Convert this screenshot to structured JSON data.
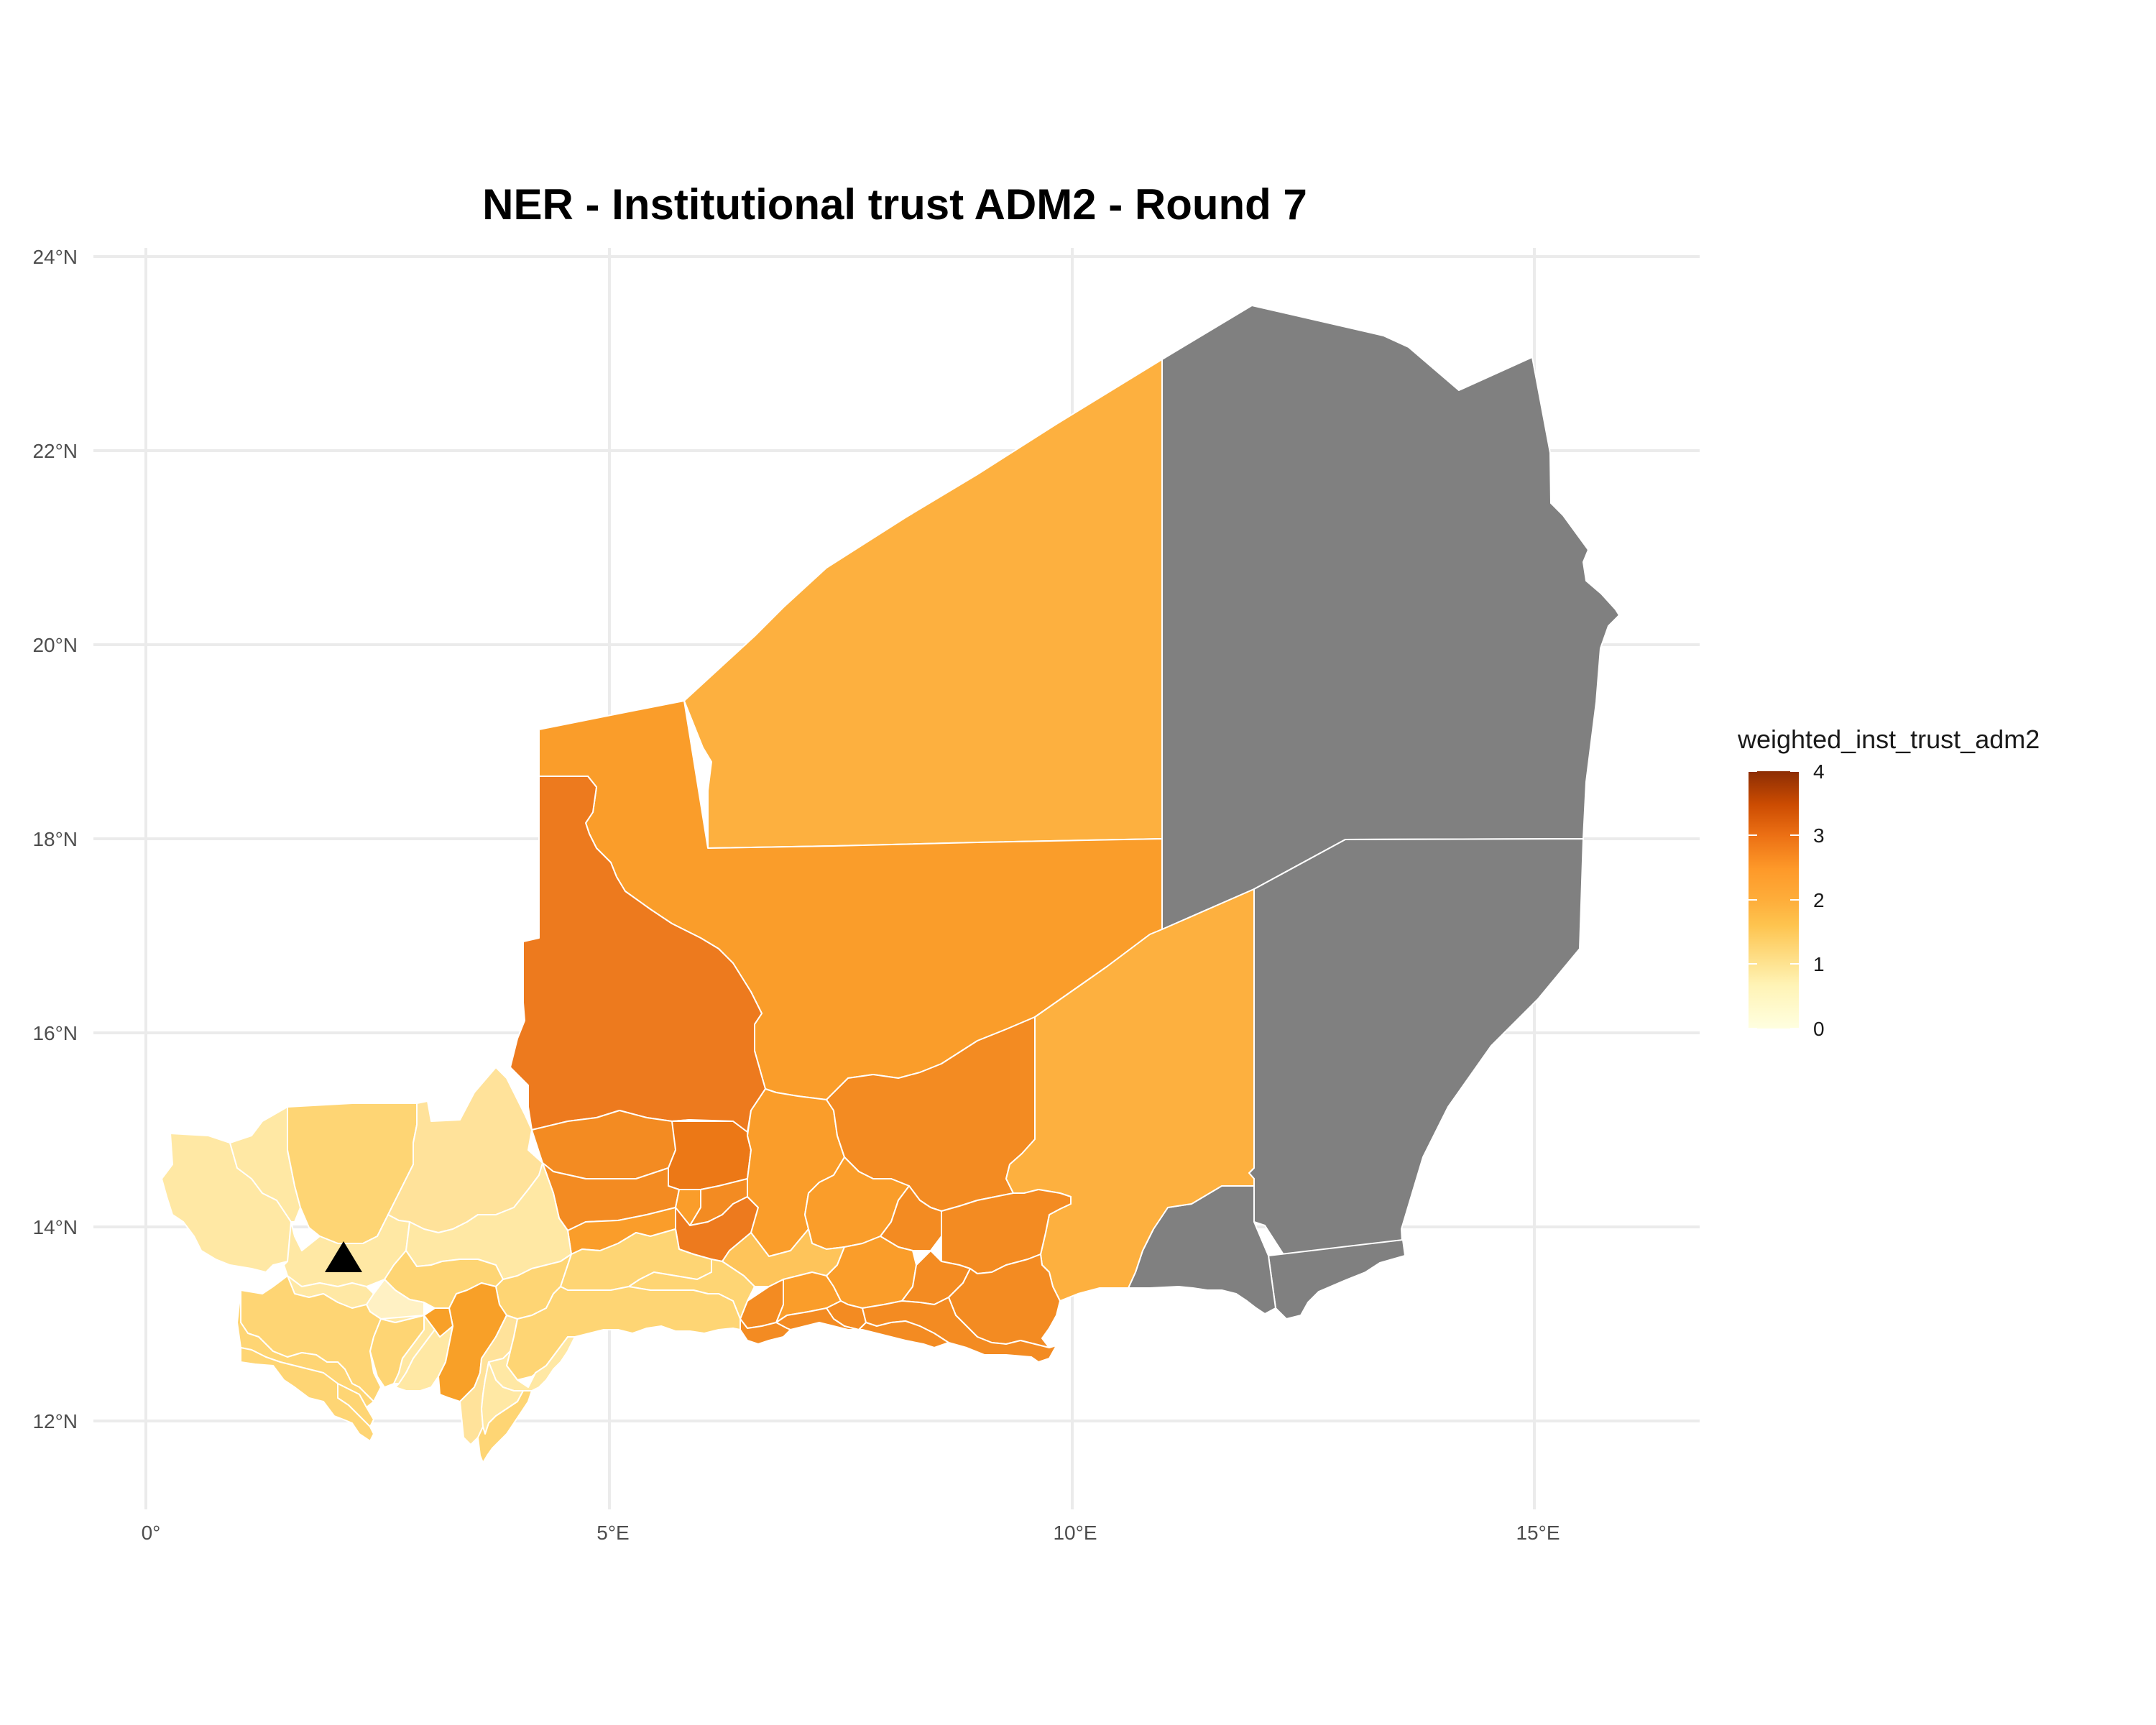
{
  "title": "NER - Institutional trust ADM2 - Round 7",
  "axes": {
    "x_ticks": [
      "0°",
      "5°E",
      "10°E",
      "15°E"
    ],
    "y_ticks": [
      "24°N",
      "22°N",
      "20°N",
      "18°N",
      "16°N",
      "14°N",
      "12°N"
    ],
    "x_range_deg": [
      -0.5,
      16.8
    ],
    "y_range_deg": [
      11.2,
      24.3
    ],
    "grid": true
  },
  "legend": {
    "title": "weighted_inst_trust_adm2",
    "labels": [
      "4",
      "3",
      "2",
      "1",
      "0"
    ],
    "range": [
      0,
      4
    ],
    "placement": "right",
    "colors": [
      "#FFFFE0",
      "#FEE391",
      "#FEC44F",
      "#FE9929",
      "#EC7014",
      "#CC4C02",
      "#8C2D04"
    ]
  },
  "marker": {
    "shape": "triangle",
    "color": "#000000",
    "lon": 2.1,
    "lat": 13.5
  },
  "colors": {
    "no_data": "#808080",
    "very_low": "#FFE8A4",
    "low": "#FED574",
    "mid_low": "#FEC45A",
    "mid": "#FDB03F",
    "mid_high": "#FA9D2A",
    "high": "#F38B22",
    "very_high": "#ED7A1E"
  }
}
